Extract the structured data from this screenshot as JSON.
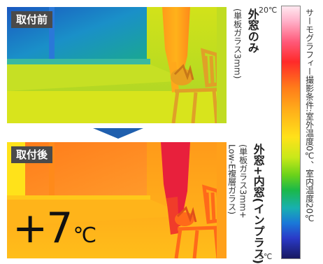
{
  "before": {
    "tag": "取付前",
    "title": "外窓のみ",
    "subtitle": "(単板ガラス3mm)"
  },
  "after": {
    "tag": "取付後",
    "title": "外窓+内窓(インプラス)",
    "subtitle_line1": "(単板ガラス3mm+",
    "subtitle_line2": "Low-E複層ガラス)",
    "gain_value": "+7",
    "gain_unit": "℃"
  },
  "scale": {
    "max_label": "20℃",
    "min_label": "5℃",
    "condition": "サーモグラフィー撮影条件:室外温度0℃、室内温度20℃"
  },
  "colors": {
    "arrow": "#1f5fae",
    "tag_bg": "#4a4a4a"
  },
  "icons": {
    "chair": "chair-silhouette",
    "plant": "plant-silhouette",
    "arrow": "down-arrow"
  }
}
